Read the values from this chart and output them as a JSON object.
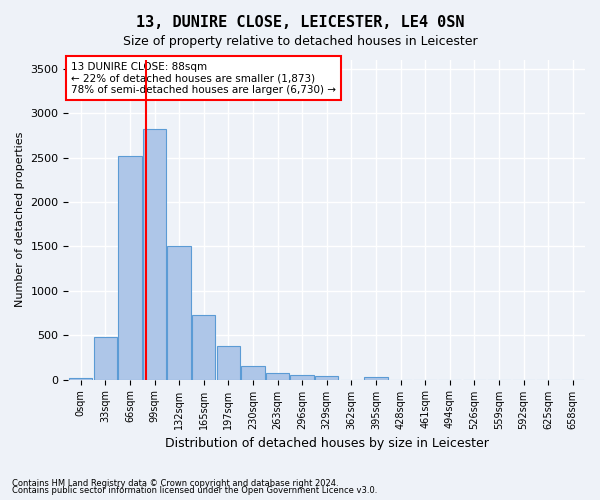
{
  "title": "13, DUNIRE CLOSE, LEICESTER, LE4 0SN",
  "subtitle": "Size of property relative to detached houses in Leicester",
  "xlabel": "Distribution of detached houses by size in Leicester",
  "ylabel": "Number of detached properties",
  "footnote1": "Contains HM Land Registry data © Crown copyright and database right 2024.",
  "footnote2": "Contains public sector information licensed under the Open Government Licence v3.0.",
  "annotation_line1": "13 DUNIRE CLOSE: 88sqm",
  "annotation_line2": "← 22% of detached houses are smaller (1,873)",
  "annotation_line3": "78% of semi-detached houses are larger (6,730) →",
  "bin_labels": [
    "0sqm",
    "33sqm",
    "66sqm",
    "99sqm",
    "132sqm",
    "165sqm",
    "197sqm",
    "230sqm",
    "263sqm",
    "296sqm",
    "329sqm",
    "362sqm",
    "395sqm",
    "428sqm",
    "461sqm",
    "494sqm",
    "526sqm",
    "559sqm",
    "592sqm",
    "625sqm",
    "658sqm"
  ],
  "bar_values": [
    20,
    480,
    2520,
    2820,
    1500,
    730,
    380,
    155,
    75,
    55,
    45,
    0,
    30,
    0,
    0,
    0,
    0,
    0,
    0,
    0,
    0
  ],
  "bar_color": "#aec6e8",
  "bar_edge_color": "#5b9bd5",
  "redline_x": 2.67,
  "ylim": [
    0,
    3600
  ],
  "yticks": [
    0,
    500,
    1000,
    1500,
    2000,
    2500,
    3000,
    3500
  ],
  "bg_color": "#eef2f8",
  "plot_bg_color": "#eef2f8",
  "grid_color": "white",
  "annotation_box_color": "white",
  "annotation_box_edge": "red"
}
